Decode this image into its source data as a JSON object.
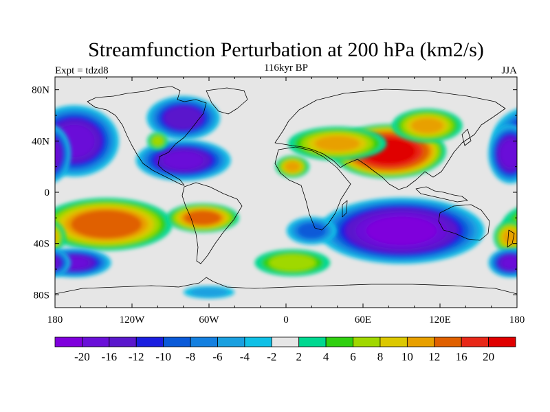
{
  "chart_data": {
    "type": "heatmap",
    "title": "Streamfunction Perturbation at 200 hPa (km2/s)",
    "subtitle_center": "116kyr BP",
    "subtitle_left": "Expt = tdzd8",
    "subtitle_right": "JJA",
    "x_axis": {
      "ticks": [
        -180,
        -120,
        -60,
        0,
        60,
        120,
        180
      ],
      "tick_labels": [
        "180",
        "120W",
        "60W",
        "0",
        "60E",
        "120E",
        "180"
      ],
      "range": [
        -180,
        180
      ]
    },
    "y_axis": {
      "ticks": [
        80,
        40,
        0,
        -40,
        -80
      ],
      "tick_labels": [
        "80N",
        "40N",
        "0",
        "40S",
        "80S"
      ],
      "range": [
        -90,
        90
      ]
    },
    "colorbar": {
      "colors": [
        "#7f00dc",
        "#6a10d8",
        "#5a18cc",
        "#1a1ee0",
        "#0a5ad8",
        "#1480e0",
        "#1aa0e0",
        "#10c0e6",
        "#e6e6e6",
        "#00d890",
        "#30d010",
        "#a0d800",
        "#dcc800",
        "#e8a000",
        "#e06000",
        "#e82818",
        "#e00000"
      ],
      "labels": [
        "-20",
        "-16",
        "-12",
        "-10",
        "-8",
        "-6",
        "-4",
        "-2",
        "2",
        "4",
        "6",
        "8",
        "10",
        "12",
        "16",
        "20"
      ]
    },
    "features": [
      {
        "lon": 80,
        "lat": 32,
        "value": 24,
        "rx": 38,
        "ry": 18
      },
      {
        "lon": 40,
        "lat": 38,
        "value": 10,
        "rx": 35,
        "ry": 12
      },
      {
        "lon": 110,
        "lat": 52,
        "value": 10,
        "rx": 25,
        "ry": 12
      },
      {
        "lon": 5,
        "lat": 20,
        "value": 10,
        "rx": 12,
        "ry": 8
      },
      {
        "lon": -140,
        "lat": -25,
        "value": 15,
        "rx": 45,
        "ry": 18
      },
      {
        "lon": -65,
        "lat": -20,
        "value": 14,
        "rx": 25,
        "ry": 10
      },
      {
        "lon": 175,
        "lat": -35,
        "value": 10,
        "rx": 12,
        "ry": 12
      },
      {
        "lon": 90,
        "lat": -30,
        "value": -22,
        "rx": 55,
        "ry": 22
      },
      {
        "lon": 20,
        "lat": -30,
        "value": -9,
        "rx": 18,
        "ry": 10
      },
      {
        "lon": -80,
        "lat": 25,
        "value": -17,
        "rx": 32,
        "ry": 14
      },
      {
        "lon": -80,
        "lat": 58,
        "value": -15,
        "rx": 25,
        "ry": 15
      },
      {
        "lon": -165,
        "lat": 40,
        "value": -18,
        "rx": 30,
        "ry": 24
      },
      {
        "lon": 175,
        "lat": 30,
        "value": -18,
        "rx": 15,
        "ry": 20
      },
      {
        "lon": -165,
        "lat": -55,
        "value": -16,
        "rx": 25,
        "ry": 10
      },
      {
        "lon": 175,
        "lat": -55,
        "value": -16,
        "rx": 15,
        "ry": 10
      },
      {
        "lon": -100,
        "lat": 40,
        "value": 6,
        "rx": 8,
        "ry": 7
      },
      {
        "lon": 5,
        "lat": -55,
        "value": 7,
        "rx": 28,
        "ry": 10
      },
      {
        "lon": -60,
        "lat": -78,
        "value": -5,
        "rx": 20,
        "ry": 5
      }
    ]
  }
}
